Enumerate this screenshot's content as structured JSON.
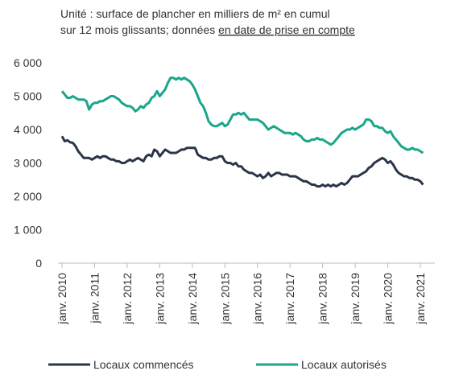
{
  "chart_data": {
    "type": "line",
    "subtitle": {
      "line1": "Unité : surface de plancher en milliers de m² en cumul",
      "line2": "sur 12 mois glissants; données",
      "underlined": "en date de prise en compte"
    },
    "categories": [
      "janv. 2010",
      null,
      null,
      null,
      null,
      null,
      null,
      null,
      null,
      null,
      null,
      null,
      "janv. 2011",
      null,
      null,
      null,
      null,
      null,
      null,
      null,
      null,
      null,
      null,
      null,
      "janv. 2012",
      null,
      null,
      null,
      null,
      null,
      null,
      null,
      null,
      null,
      null,
      null,
      "janv. 2013",
      null,
      null,
      null,
      null,
      null,
      null,
      null,
      null,
      null,
      null,
      null,
      "janv. 2014",
      null,
      null,
      null,
      null,
      null,
      null,
      null,
      null,
      null,
      null,
      null,
      "janv. 2015",
      null,
      null,
      null,
      null,
      null,
      null,
      null,
      null,
      null,
      null,
      null,
      "janv. 2016",
      null,
      null,
      null,
      null,
      null,
      null,
      null,
      null,
      null,
      null,
      null,
      "janv. 2017",
      null,
      null,
      null,
      null,
      null,
      null,
      null,
      null,
      null,
      null,
      null,
      "janv. 2018",
      null,
      null,
      null,
      null,
      null,
      null,
      null,
      null,
      null,
      null,
      null,
      "janv. 2019",
      null,
      null,
      null,
      null,
      null,
      null,
      null,
      null,
      null,
      null,
      null,
      "janv. 2020",
      null,
      null,
      null,
      null,
      null,
      null,
      null,
      null,
      null,
      null,
      null,
      "janv. 2021",
      null
    ],
    "series": [
      {
        "name": "Locaux commencés",
        "color": "#2b3548",
        "values": [
          3800,
          3650,
          3680,
          3620,
          3600,
          3500,
          3350,
          3250,
          3150,
          3150,
          3150,
          3100,
          3150,
          3200,
          3150,
          3200,
          3200,
          3150,
          3100,
          3100,
          3050,
          3050,
          3000,
          3000,
          3050,
          3100,
          3050,
          3100,
          3150,
          3100,
          3050,
          3200,
          3250,
          3200,
          3400,
          3350,
          3200,
          3300,
          3400,
          3350,
          3300,
          3300,
          3300,
          3350,
          3400,
          3400,
          3450,
          3450,
          3450,
          3450,
          3250,
          3200,
          3150,
          3150,
          3100,
          3100,
          3150,
          3150,
          3200,
          3200,
          3050,
          3000,
          3000,
          2950,
          3000,
          2900,
          2900,
          2800,
          2750,
          2700,
          2700,
          2650,
          2600,
          2650,
          2550,
          2600,
          2700,
          2600,
          2650,
          2700,
          2700,
          2650,
          2650,
          2650,
          2600,
          2600,
          2600,
          2550,
          2500,
          2450,
          2450,
          2400,
          2350,
          2350,
          2300,
          2300,
          2350,
          2300,
          2350,
          2300,
          2350,
          2300,
          2350,
          2400,
          2350,
          2400,
          2500,
          2600,
          2600,
          2600,
          2650,
          2700,
          2750,
          2850,
          2900,
          3000,
          3050,
          3100,
          3150,
          3100,
          3000,
          3050,
          2950,
          2800,
          2700,
          2650,
          2600,
          2600,
          2550,
          2550,
          2500,
          2500,
          2450,
          2350
        ]
      },
      {
        "name": "Locaux autorisés",
        "color": "#1aa68a",
        "values": [
          5150,
          5050,
          4950,
          4950,
          5000,
          4950,
          4900,
          4900,
          4900,
          4850,
          4600,
          4750,
          4800,
          4800,
          4850,
          4850,
          4900,
          4950,
          5000,
          5000,
          4950,
          4900,
          4800,
          4750,
          4700,
          4700,
          4650,
          4550,
          4600,
          4700,
          4650,
          4750,
          4800,
          4950,
          5000,
          5150,
          5000,
          5100,
          5200,
          5400,
          5550,
          5550,
          5500,
          5550,
          5500,
          5550,
          5500,
          5450,
          5350,
          5200,
          5000,
          4800,
          4700,
          4500,
          4250,
          4150,
          4100,
          4100,
          4150,
          4200,
          4100,
          4150,
          4300,
          4450,
          4450,
          4500,
          4450,
          4500,
          4400,
          4300,
          4300,
          4300,
          4300,
          4250,
          4200,
          4100,
          4000,
          4050,
          4100,
          4050,
          4000,
          3950,
          3900,
          3900,
          3900,
          3850,
          3900,
          3850,
          3800,
          3700,
          3650,
          3650,
          3700,
          3700,
          3750,
          3700,
          3700,
          3650,
          3600,
          3550,
          3600,
          3700,
          3800,
          3900,
          3950,
          4000,
          4000,
          4050,
          4000,
          4050,
          4100,
          4150,
          4300,
          4300,
          4250,
          4100,
          4100,
          4050,
          4050,
          3950,
          3900,
          3950,
          3800,
          3700,
          3600,
          3500,
          3450,
          3400,
          3400,
          3450,
          3400,
          3400,
          3350,
          3300
        ]
      }
    ],
    "ylim": [
      0,
      6000
    ],
    "yticks": [
      0,
      {
        "value": 1000,
        "label": "1 000"
      },
      {
        "value": 2000,
        "label": "2 000"
      },
      {
        "value": 3000,
        "label": "3 000"
      },
      {
        "value": 4000,
        "label": "4 000"
      },
      {
        "value": 5000,
        "label": "5 000"
      },
      {
        "value": 6000,
        "label": "6 000"
      }
    ],
    "legend": "bottom"
  }
}
